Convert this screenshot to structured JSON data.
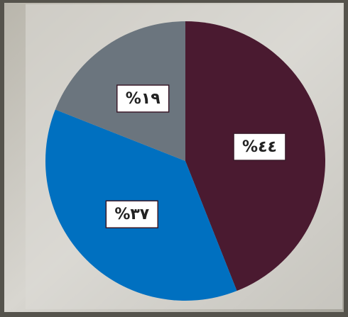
{
  "chart_data": {
    "type": "pie",
    "categories": [
      null,
      null,
      null
    ],
    "values": [
      44,
      37,
      19
    ],
    "value_labels": [
      "%٤٤",
      "%٣٧",
      "%١٩"
    ],
    "colors": [
      "#4a1a30",
      "#0070c0",
      "#6b757e"
    ]
  }
}
